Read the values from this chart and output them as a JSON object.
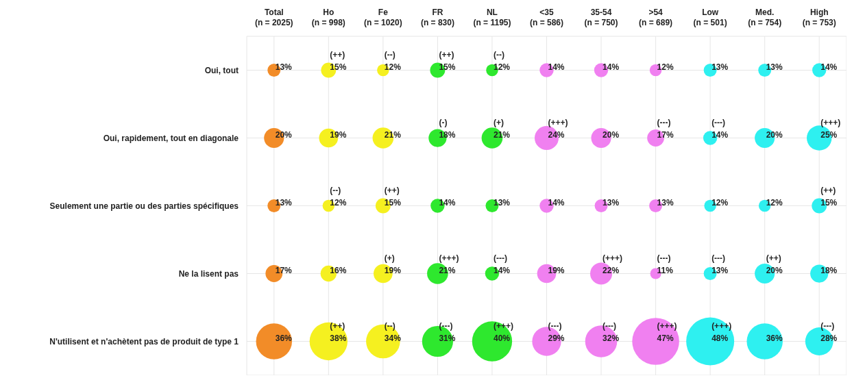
{
  "chart_data": {
    "type": "heatmap",
    "categories": [
      "Total\n(n = 2025)",
      "Ho\n(n = 998)",
      "Fe\n(n = 1020)",
      "FR\n(n = 830)",
      "NL\n(n = 1195)",
      "<35\n(n = 586)",
      "35-54\n(n = 750)",
      ">54\n(n = 689)",
      "Low\n(n = 501)",
      "Med.\n(n = 754)",
      "High\n(n = 753)"
    ],
    "y_categories": [
      "Oui, tout",
      "Oui, rapidement, tout en diagonale",
      "Seulement une partie ou des parties spécifiques",
      "Ne la lisent pas",
      "N'utilisent et n'achètent pas de produit de type 1"
    ],
    "cells": [
      [
        13,
        15,
        12,
        15,
        12,
        14,
        14,
        12,
        13,
        13,
        14
      ],
      [
        20,
        19,
        21,
        18,
        21,
        24,
        20,
        17,
        14,
        20,
        25
      ],
      [
        13,
        12,
        15,
        14,
        13,
        14,
        13,
        13,
        12,
        12,
        15
      ],
      [
        17,
        16,
        19,
        21,
        14,
        19,
        22,
        11,
        13,
        20,
        18
      ],
      [
        36,
        38,
        34,
        31,
        40,
        29,
        32,
        47,
        48,
        36,
        28
      ]
    ],
    "cell_labels": [
      [
        "13%",
        "(++)\n15%",
        "(--)\n12%",
        "(++)\n15%",
        "(--)\n12%",
        "14%",
        "14%",
        "12%",
        "13%",
        "13%",
        "14%"
      ],
      [
        "20%",
        "19%",
        "21%",
        "(-)\n18%",
        "(+)\n21%",
        "(+++)\n24%",
        "20%",
        "(---)\n17%",
        "(---)\n14%",
        "20%",
        "(+++)\n25%"
      ],
      [
        "13%",
        "(--)\n12%",
        "(++)\n15%",
        "14%",
        "13%",
        "14%",
        "13%",
        "13%",
        "12%",
        "12%",
        "(++)\n15%"
      ],
      [
        "17%",
        "16%",
        "(+)\n19%",
        "(+++)\n21%",
        "(---)\n14%",
        "19%",
        "(+++)\n22%",
        "(---)\n11%",
        "(---)\n13%",
        "(++)\n20%",
        "18%"
      ],
      [
        "36%",
        "(++)\n38%",
        "(--)\n34%",
        "(---)\n31%",
        "(+++)\n40%",
        "(---)\n29%",
        "(---)\n32%",
        "(+++)\n47%",
        "(+++)\n48%",
        "36%",
        "(---)\n28%"
      ]
    ],
    "colors": [
      "#f28c28",
      "#f5f020",
      "#f5f020",
      "#2ee82e",
      "#2ee82e",
      "#f080f0",
      "#f080f0",
      "#f080f0",
      "#2ef0f0",
      "#2ef0f0",
      "#2ef0f0"
    ],
    "grid": true
  }
}
